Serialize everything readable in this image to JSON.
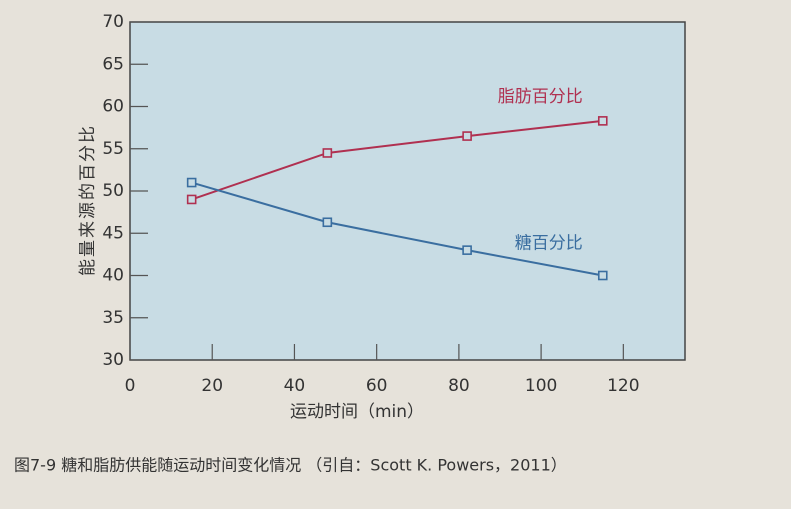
{
  "chart_data": {
    "type": "line",
    "caption": "图7-9  糖和脂肪供能随运动时间变化情况 （引自：Scott K. Powers，2011）",
    "x_label": "运动时间（min）",
    "y_label": "能量来源的百分比",
    "x": [
      15,
      48,
      82,
      115
    ],
    "series": [
      {
        "name": "脂肪百分比",
        "color": "#b03050",
        "values": [
          49,
          54.5,
          56.5,
          58.3
        ]
      },
      {
        "name": "糖百分比",
        "color": "#3a6ea0",
        "values": [
          51,
          46.3,
          43,
          40
        ]
      }
    ],
    "xlim": [
      0,
      135
    ],
    "xticks": [
      0,
      20,
      40,
      60,
      80,
      100,
      120
    ],
    "ylim": [
      30,
      70
    ],
    "yticks": [
      30,
      35,
      40,
      45,
      50,
      55,
      60,
      65,
      70
    ]
  }
}
